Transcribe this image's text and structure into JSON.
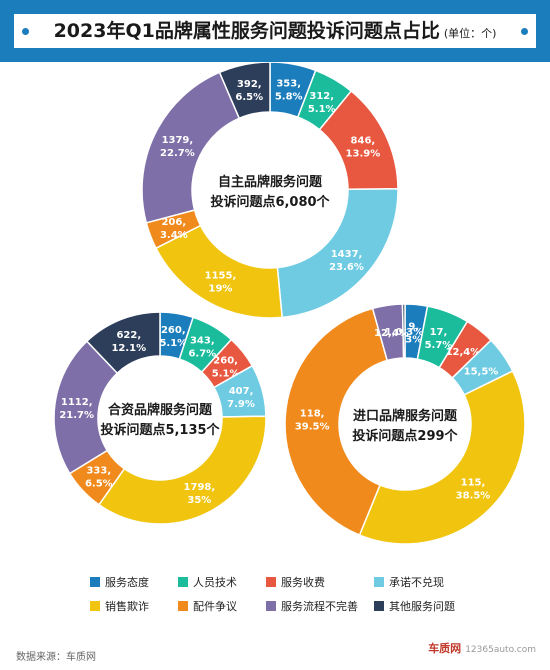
{
  "header": {
    "title": "2023年Q1品牌属性服务问题投诉问题点占比",
    "unit": "(单位：个)"
  },
  "chart_data": [
    {
      "type": "pie",
      "style": "donut",
      "center_label": [
        "自主品牌服务问题",
        "投诉问题点6,080个"
      ],
      "categories": [
        "服务态度",
        "人员技术",
        "服务收费",
        "承诺不兑现",
        "销售欺诈",
        "配件争议",
        "服务流程不完善",
        "其他服务问题"
      ],
      "values": [
        353,
        312,
        846,
        1437,
        1155,
        206,
        1379,
        392
      ],
      "percent_labels": [
        "5.8%",
        "5.1%",
        "13.9%",
        "23.6%",
        "19%",
        "3.4%",
        "22.7%",
        "6.5%"
      ],
      "slice_labels": [
        [
          "353,",
          "5.8%"
        ],
        [
          "312,",
          "5.1%"
        ],
        [
          "846,",
          "13.9%"
        ],
        [
          "1437,",
          "23.6%"
        ],
        [
          "1155,",
          "19%"
        ],
        [
          "206,",
          "3.4%"
        ],
        [
          "1379,",
          "22.7%"
        ],
        [
          "392,",
          "6.5%"
        ]
      ]
    },
    {
      "type": "pie",
      "style": "donut",
      "center_label": [
        "合资品牌服务问题",
        "投诉问题点5,135个"
      ],
      "categories": [
        "服务态度",
        "人员技术",
        "服务收费",
        "承诺不兑现",
        "销售欺诈",
        "配件争议",
        "服务流程不完善",
        "其他服务问题"
      ],
      "values": [
        260,
        343,
        260,
        407,
        1798,
        333,
        1112,
        622
      ],
      "percent_labels": [
        "5.1%",
        "6.7%",
        "5.1%",
        "7.9%",
        "35%",
        "6.5%",
        "21.7%",
        "12.1%"
      ],
      "slice_labels": [
        [
          "260,",
          "5.1%"
        ],
        [
          "343,",
          "6.7%"
        ],
        [
          "260,",
          "5.1%"
        ],
        [
          "407,",
          "7.9%"
        ],
        [
          "1798,",
          "35%"
        ],
        [
          "333,",
          "6.5%"
        ],
        [
          "1112,",
          "21.7%"
        ],
        [
          "622,",
          "12.1%"
        ]
      ]
    },
    {
      "type": "pie",
      "style": "donut",
      "center_label": [
        "进口品牌服务问题",
        "投诉问题点299个"
      ],
      "categories": [
        "服务态度",
        "人员技术",
        "服务收费",
        "承诺不兑现",
        "销售欺诈",
        "配件争议",
        "服务流程不完善",
        "其他服务问题"
      ],
      "values": [
        9,
        17,
        12,
        15,
        115,
        118,
        12,
        1
      ],
      "percent_labels": [
        "3%",
        "5.7%",
        "4%",
        "5%",
        "38.5%",
        "39.5%",
        "4%",
        "0.3%"
      ],
      "slice_labels": [
        [
          "9,",
          "3%"
        ],
        [
          "17,",
          "5.7%"
        ],
        [
          "12,4%"
        ],
        [
          "15,5%"
        ],
        [
          "115,",
          "38.5%"
        ],
        [
          "118,",
          "39.5%"
        ],
        [
          "12,4%"
        ],
        [
          "1,0.3%"
        ]
      ]
    }
  ],
  "legend": {
    "items": [
      {
        "label": "服务态度",
        "color": "#1c7dbd"
      },
      {
        "label": "人员技术",
        "color": "#1abc9c"
      },
      {
        "label": "服务收费",
        "color": "#e8573f"
      },
      {
        "label": "承诺不兑现",
        "color": "#6ecbe2"
      },
      {
        "label": "销售欺诈",
        "color": "#f1c40f"
      },
      {
        "label": "配件争议",
        "color": "#f08a1c"
      },
      {
        "label": "服务流程不完善",
        "color": "#7e6fa8"
      },
      {
        "label": "其他服务问题",
        "color": "#2c3e5a"
      }
    ]
  },
  "footer": {
    "source": "数据来源：车质网",
    "watermark": "车质网",
    "watermark_url": "12365auto.com"
  }
}
